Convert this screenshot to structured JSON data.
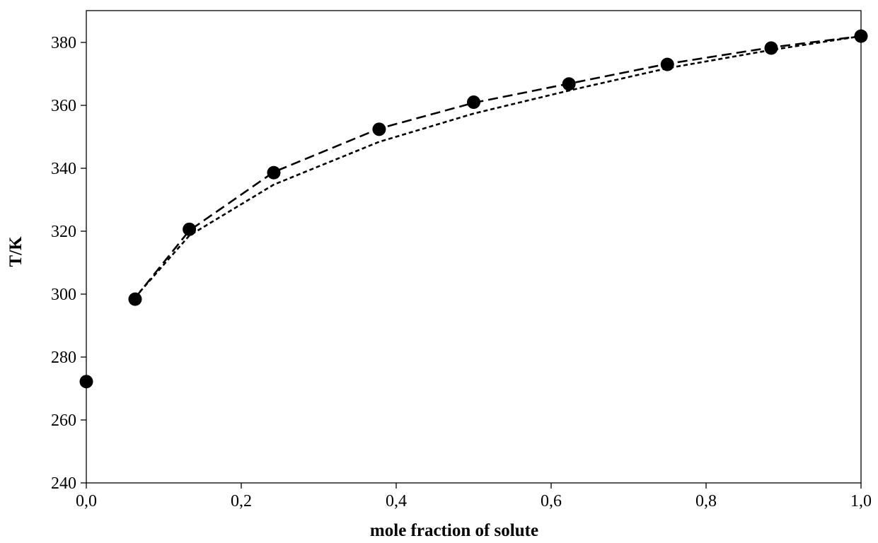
{
  "chart_data": {
    "type": "scatter",
    "xlabel": "mole fraction of solute",
    "ylabel": "T/K",
    "xlim": [
      0,
      1
    ],
    "ylim": [
      240,
      380
    ],
    "x_ticks": [
      "0,0",
      "0,2",
      "0,4",
      "0,6",
      "0,8",
      "1,0"
    ],
    "x_tick_values": [
      0,
      0.2,
      0.4,
      0.6,
      0.8,
      1.0
    ],
    "y_ticks": [
      "240",
      "260",
      "280",
      "300",
      "320",
      "340",
      "360",
      "380"
    ],
    "y_tick_values": [
      240,
      260,
      280,
      300,
      320,
      340,
      360,
      380
    ],
    "grid": false,
    "series": [
      {
        "style": "markers",
        "color": "#000000",
        "x": [
          0.0,
          0.063,
          0.133,
          0.242,
          0.378,
          0.5,
          0.623,
          0.75,
          0.884,
          1.0
        ],
        "y": [
          272.2,
          298.4,
          320.6,
          338.6,
          352.4,
          361.0,
          366.8,
          373.0,
          378.2,
          382.0
        ]
      },
      {
        "style": "long-dash",
        "color": "#000000",
        "x": [
          0.063,
          0.133,
          0.242,
          0.378,
          0.5,
          0.623,
          0.75,
          0.884,
          1.0
        ],
        "y": [
          298.8,
          320.2,
          338.8,
          352.6,
          360.8,
          366.9,
          373.2,
          378.4,
          382.0
        ]
      },
      {
        "style": "short-dash",
        "color": "#000000",
        "x": [
          0.063,
          0.133,
          0.242,
          0.378,
          0.5,
          0.623,
          0.75,
          0.884,
          1.0
        ],
        "y": [
          299.0,
          318.6,
          334.8,
          348.4,
          357.4,
          364.7,
          371.8,
          377.6,
          382.0
        ]
      }
    ]
  }
}
